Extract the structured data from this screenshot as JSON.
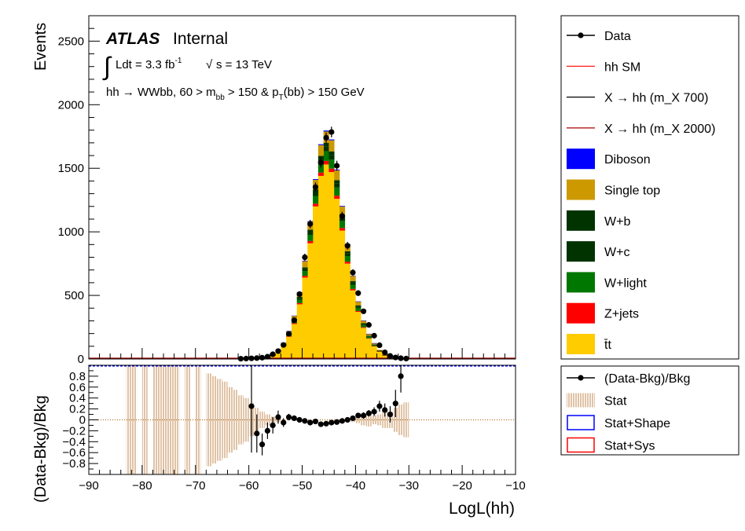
{
  "colors": {
    "ttbar": "#ffcc00",
    "zjets": "#ff0000",
    "wlight": "#007700",
    "wc": "#003300",
    "wb": "#003300",
    "singletop": "#cc9900",
    "diboson": "#0000ff",
    "hh_sm": "#ff0000",
    "x700": "#000000",
    "x2000": "#aa0000",
    "stat_band": "#d9b48f"
  },
  "annotations": {
    "experiment": "ATLAS",
    "status": "Internal",
    "lumi_prefix": "Ldt = 3.3 fb",
    "lumi_exp": "-1",
    "energy": "s = 13 TeV",
    "selection_a": "hh →  WWbb, 60 > m",
    "selection_sub1": "bb",
    "selection_b": " > 150 & p",
    "selection_sub2": "T",
    "selection_c": "(bb) > 150 GeV"
  },
  "chart_data": [
    {
      "type": "bar",
      "panel": "main",
      "stacked": true,
      "xlabel": "",
      "ylabel": "Events",
      "xlim": [
        -90,
        -10
      ],
      "ylim": [
        0,
        2700
      ],
      "xticks": [
        -90,
        -80,
        -70,
        -60,
        -50,
        -40,
        -30,
        -20,
        -10
      ],
      "yticks": [
        0,
        500,
        1000,
        1500,
        2000,
        2500
      ],
      "bin_width": 1,
      "bin_low_edges": [
        -62,
        -61,
        -60,
        -59,
        -58,
        -57,
        -56,
        -55,
        -54,
        -53,
        -52,
        -51,
        -50,
        -49,
        -48,
        -47,
        -46,
        -45,
        -44,
        -43,
        -42,
        -41,
        -40,
        -39,
        -38,
        -37,
        -36,
        -35,
        -34,
        -33,
        -32,
        -31
      ],
      "series": [
        {
          "name": "t̄t",
          "key": "ttbar",
          "values": [
            1,
            2,
            3,
            5,
            8,
            15,
            28,
            55,
            100,
            175,
            275,
            430,
            640,
            910,
            1200,
            1440,
            1530,
            1470,
            1260,
            1010,
            750,
            540,
            370,
            245,
            160,
            100,
            58,
            28,
            12,
            5,
            2,
            1
          ]
        },
        {
          "name": "Z+jets",
          "key": "zjets",
          "values": [
            0,
            0,
            0,
            0,
            0,
            1,
            1,
            2,
            3,
            5,
            7,
            10,
            14,
            18,
            22,
            26,
            28,
            27,
            24,
            20,
            15,
            11,
            8,
            5,
            3,
            2,
            1,
            1,
            0,
            0,
            0,
            0
          ]
        },
        {
          "name": "W+light",
          "key": "wlight",
          "values": [
            0,
            0,
            0,
            0,
            1,
            1,
            2,
            4,
            7,
            12,
            18,
            26,
            36,
            48,
            60,
            70,
            75,
            72,
            65,
            55,
            44,
            33,
            24,
            17,
            11,
            7,
            4,
            2,
            1,
            0,
            0,
            0
          ]
        },
        {
          "name": "W+c",
          "key": "wc",
          "values": [
            0,
            0,
            0,
            0,
            0,
            1,
            1,
            2,
            3,
            5,
            8,
            12,
            17,
            22,
            28,
            33,
            36,
            35,
            31,
            26,
            21,
            16,
            11,
            8,
            5,
            3,
            2,
            1,
            0,
            0,
            0,
            0
          ]
        },
        {
          "name": "W+b",
          "key": "wb",
          "values": [
            0,
            0,
            0,
            0,
            0,
            1,
            1,
            2,
            3,
            5,
            7,
            10,
            14,
            19,
            24,
            28,
            30,
            29,
            26,
            22,
            17,
            13,
            9,
            6,
            4,
            3,
            2,
            1,
            0,
            0,
            0,
            0
          ]
        },
        {
          "name": "Single top",
          "key": "singletop",
          "values": [
            0,
            0,
            0,
            0,
            1,
            2,
            3,
            6,
            10,
            16,
            24,
            35,
            48,
            62,
            75,
            85,
            90,
            87,
            78,
            66,
            53,
            40,
            29,
            20,
            14,
            9,
            5,
            3,
            1,
            0,
            0,
            0
          ]
        },
        {
          "name": "Diboson",
          "key": "diboson",
          "values": [
            0,
            0,
            0,
            0,
            0,
            0,
            0,
            1,
            1,
            2,
            2,
            3,
            4,
            5,
            6,
            7,
            8,
            7,
            6,
            5,
            4,
            3,
            2,
            2,
            1,
            1,
            0,
            0,
            0,
            0,
            0,
            0
          ]
        }
      ],
      "data_label": "Data",
      "data_values": [
        2,
        3,
        5,
        7,
        10,
        18,
        37,
        62,
        110,
        198,
        305,
        510,
        800,
        1062,
        1352,
        1545,
        1740,
        1785,
        1520,
        1125,
        891,
        680,
        518,
        375,
        268,
        183,
        108,
        52,
        24,
        12,
        6,
        3
      ],
      "signals": [
        {
          "name": "hh SM",
          "key": "hh_sm"
        },
        {
          "name": "X → hh (m_X 700)",
          "key": "x700"
        },
        {
          "name": "X → hh (m_X 2000)",
          "key": "x2000"
        }
      ]
    },
    {
      "type": "scatter",
      "panel": "ratio",
      "xlabel": "LogL(hh)",
      "ylabel": "(Data-Bkg)/Bkg",
      "xlim": [
        -90,
        -10
      ],
      "ylim": [
        -1,
        1
      ],
      "xticks": [
        -90,
        -80,
        -70,
        -60,
        -50,
        -40,
        -30,
        -20,
        -10
      ],
      "xtick_labels": [
        "−90",
        "−80",
        "−70",
        "−60",
        "−50",
        "−40",
        "−30",
        "−20",
        "−10"
      ],
      "yticks": [
        -0.8,
        -0.6,
        -0.4,
        -0.2,
        0,
        0.2,
        0.4,
        0.6,
        0.8
      ],
      "ytick_labels": [
        "−0.8",
        "−0.6",
        "−0.4",
        "−0.2",
        "0",
        "0.2",
        "0.4",
        "0.6",
        "0.8"
      ],
      "points": [
        {
          "x": -59.5,
          "y": 0.25,
          "err": 0.85
        },
        {
          "x": -58.5,
          "y": -0.25,
          "err": 0.35
        },
        {
          "x": -57.5,
          "y": -0.45,
          "err": 0.2
        },
        {
          "x": -56.5,
          "y": -0.2,
          "err": 0.15
        },
        {
          "x": -55.5,
          "y": -0.1,
          "err": 0.15
        },
        {
          "x": -54.5,
          "y": 0.05,
          "err": 0.12
        },
        {
          "x": -53.5,
          "y": -0.05,
          "err": 0.08
        },
        {
          "x": -52.5,
          "y": 0.05,
          "err": 0.06
        },
        {
          "x": -51.5,
          "y": 0.03,
          "err": 0.05
        },
        {
          "x": -50.5,
          "y": 0.0,
          "err": 0.04
        },
        {
          "x": -49.5,
          "y": -0.02,
          "err": 0.03
        },
        {
          "x": -48.5,
          "y": -0.05,
          "err": 0.03
        },
        {
          "x": -47.5,
          "y": -0.03,
          "err": 0.03
        },
        {
          "x": -46.5,
          "y": -0.08,
          "err": 0.02
        },
        {
          "x": -45.5,
          "y": -0.07,
          "err": 0.02
        },
        {
          "x": -44.5,
          "y": -0.05,
          "err": 0.02
        },
        {
          "x": -43.5,
          "y": -0.04,
          "err": 0.03
        },
        {
          "x": -42.5,
          "y": -0.02,
          "err": 0.03
        },
        {
          "x": -41.5,
          "y": 0.0,
          "err": 0.04
        },
        {
          "x": -40.5,
          "y": 0.03,
          "err": 0.04
        },
        {
          "x": -39.5,
          "y": 0.08,
          "err": 0.05
        },
        {
          "x": -38.5,
          "y": 0.08,
          "err": 0.06
        },
        {
          "x": -37.5,
          "y": 0.12,
          "err": 0.06
        },
        {
          "x": -36.5,
          "y": 0.15,
          "err": 0.08
        },
        {
          "x": -35.5,
          "y": 0.25,
          "err": 0.1
        },
        {
          "x": -34.5,
          "y": 0.18,
          "err": 0.12
        },
        {
          "x": -33.5,
          "y": 0.1,
          "err": 0.15
        },
        {
          "x": -32.5,
          "y": 0.3,
          "err": 0.25
        },
        {
          "x": -31.5,
          "y": 0.8,
          "err": 0.3
        }
      ],
      "stat_band": [
        {
          "x0": -83,
          "x1": -81,
          "lo": -1,
          "hi": 1
        },
        {
          "x0": -80,
          "x1": -79,
          "lo": -1,
          "hi": 1
        },
        {
          "x0": -78,
          "x1": -73,
          "lo": -1,
          "hi": 1
        },
        {
          "x0": -72,
          "x1": -71,
          "lo": -1,
          "hi": 1
        },
        {
          "x0": -70,
          "x1": -69,
          "lo": -1,
          "hi": 1
        },
        {
          "x0": -68,
          "x1": -67,
          "lo": -0.85,
          "hi": 0.85
        },
        {
          "x0": -67,
          "x1": -66,
          "lo": -0.8,
          "hi": 0.8
        },
        {
          "x0": -66,
          "x1": -65,
          "lo": -0.75,
          "hi": 0.75
        },
        {
          "x0": -65,
          "x1": -64,
          "lo": -0.7,
          "hi": 0.7
        },
        {
          "x0": -64,
          "x1": -63,
          "lo": -0.6,
          "hi": 0.6
        },
        {
          "x0": -63,
          "x1": -62,
          "lo": -0.55,
          "hi": 0.55
        },
        {
          "x0": -62,
          "x1": -61,
          "lo": -0.45,
          "hi": 0.45
        },
        {
          "x0": -61,
          "x1": -60,
          "lo": -0.4,
          "hi": 0.4
        },
        {
          "x0": -60,
          "x1": -59,
          "lo": -0.3,
          "hi": 0.3
        },
        {
          "x0": -59,
          "x1": -58,
          "lo": -0.22,
          "hi": 0.22
        },
        {
          "x0": -58,
          "x1": -57,
          "lo": -0.15,
          "hi": 0.15
        },
        {
          "x0": -57,
          "x1": -56,
          "lo": -0.1,
          "hi": 0.1
        },
        {
          "x0": -56,
          "x1": -55,
          "lo": -0.06,
          "hi": 0.06
        },
        {
          "x0": -55,
          "x1": -54,
          "lo": -0.04,
          "hi": 0.04
        },
        {
          "x0": -41,
          "x1": -40,
          "lo": -0.04,
          "hi": 0.04
        },
        {
          "x0": -40,
          "x1": -39,
          "lo": -0.06,
          "hi": 0.06
        },
        {
          "x0": -39,
          "x1": -38,
          "lo": -0.1,
          "hi": 0.1
        },
        {
          "x0": -38,
          "x1": -37,
          "lo": -0.12,
          "hi": 0.12
        },
        {
          "x0": -37,
          "x1": -36,
          "lo": -0.08,
          "hi": 0.08
        },
        {
          "x0": -36,
          "x1": -35,
          "lo": -0.1,
          "hi": 0.1
        },
        {
          "x0": -35,
          "x1": -34,
          "lo": -0.15,
          "hi": 0.15
        },
        {
          "x0": -34,
          "x1": -33,
          "lo": -0.15,
          "hi": 0.15
        },
        {
          "x0": -33,
          "x1": -32,
          "lo": -0.22,
          "hi": 0.22
        },
        {
          "x0": -32,
          "x1": -31,
          "lo": -0.28,
          "hi": 0.28
        },
        {
          "x0": -31,
          "x1": -30,
          "lo": -0.32,
          "hi": 0.32
        }
      ],
      "legend": [
        {
          "name": "(Data-Bkg)/Bkg",
          "key": "ratio"
        },
        {
          "name": "Stat",
          "key": "stat"
        },
        {
          "name": "Stat+Shape",
          "key": "shape",
          "color": "#0000ff"
        },
        {
          "name": "Stat+Sys",
          "key": "sys",
          "color": "#ff0000"
        }
      ]
    }
  ]
}
